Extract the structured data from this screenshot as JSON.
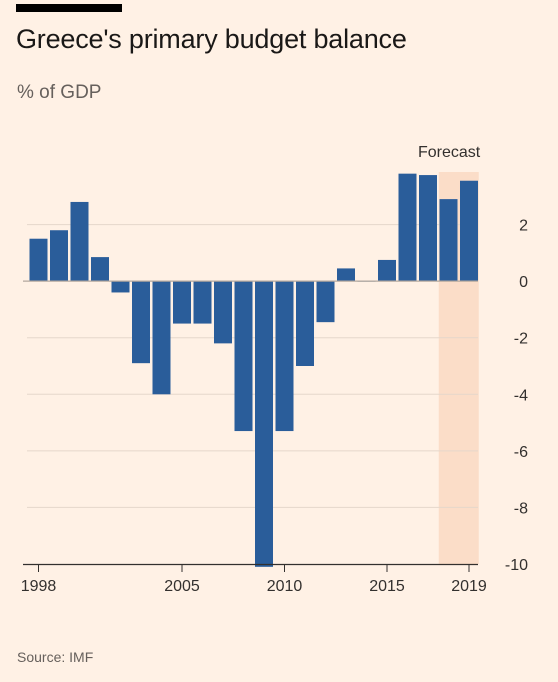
{
  "title": "Greece's primary budget balance",
  "subtitle": "% of GDP",
  "source": "Source: IMF",
  "forecast_label": "Forecast",
  "colors": {
    "background": "#FFF1E5",
    "bar": "#2A5D9A",
    "forecast_band": "#FBDDC8",
    "gridline": "#E5D7CB",
    "zero_line": "#B3A89E"
  },
  "chart_data": {
    "type": "bar",
    "title": "Greece's primary budget balance",
    "subtitle": "% of GDP",
    "categories": [
      1998,
      1999,
      2000,
      2001,
      2002,
      2003,
      2004,
      2005,
      2006,
      2007,
      2008,
      2009,
      2010,
      2011,
      2012,
      2013,
      2014,
      2015,
      2016,
      2017,
      2018,
      2019
    ],
    "values": [
      1.5,
      1.8,
      2.8,
      0.85,
      -0.4,
      -2.9,
      -4.0,
      -1.5,
      -1.5,
      -2.2,
      -5.3,
      -10.1,
      -5.3,
      -3.0,
      -1.45,
      0.45,
      0.0,
      0.75,
      3.8,
      3.75,
      2.9,
      3.55
    ],
    "forecast_from": 2018,
    "ylim": [
      -10,
      4
    ],
    "yticks": [
      2,
      0,
      -2,
      -4,
      -6,
      -8,
      -10
    ],
    "xticks": [
      1998,
      2005,
      2010,
      2015,
      2019
    ],
    "grid": true,
    "y_axis_position": "right"
  }
}
